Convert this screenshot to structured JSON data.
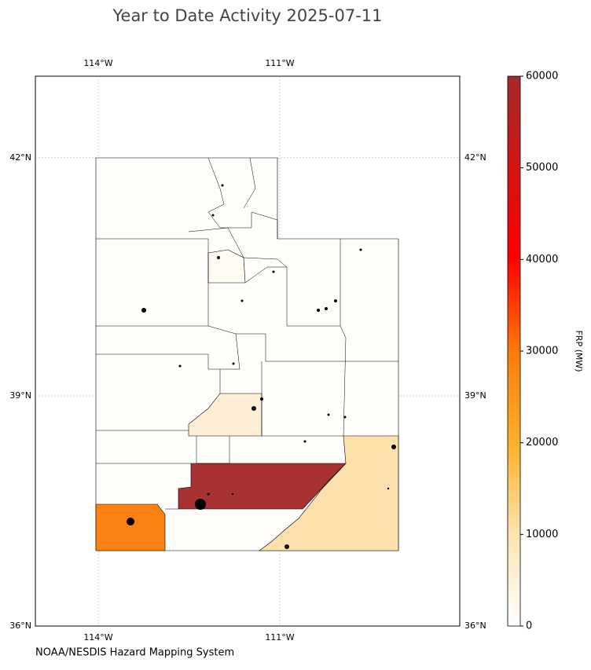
{
  "title": "Year to Date Activity 2025-07-11",
  "source": "NOAA/NESDIS Hazard Mapping System",
  "map": {
    "lon_ticks": [
      "114°W",
      "111°W"
    ],
    "lat_ticks": [
      "42°N",
      "39°N",
      "36°N"
    ]
  },
  "colorbar": {
    "label": "FRP (MW)",
    "range": [
      0,
      60000
    ],
    "ticks": [
      0,
      10000,
      20000,
      30000,
      40000,
      50000,
      60000
    ]
  }
}
